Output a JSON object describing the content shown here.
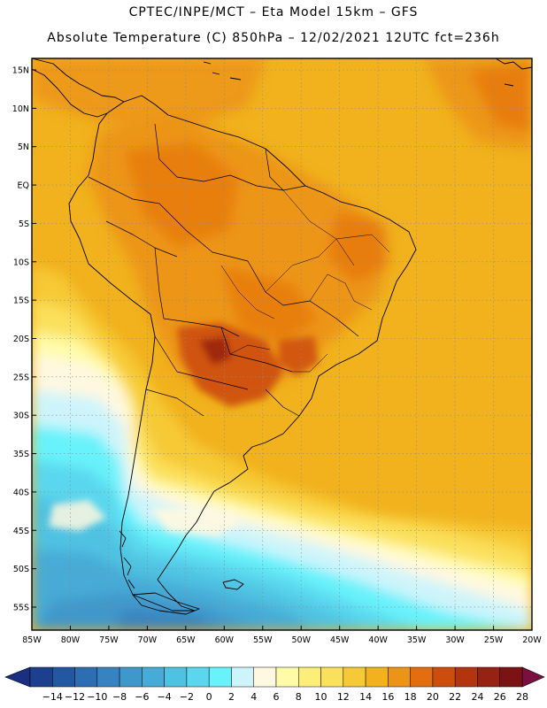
{
  "header": {
    "line1": "CPTEC/INPE/MCT –  Eta Model 15km – GFS",
    "line2": "Absolute Temperature (C) 850hPa – 12/02/2021 12UTC fct=236h"
  },
  "map": {
    "lat_labels": [
      "15N",
      "10N",
      "5N",
      "EQ",
      "5S",
      "10S",
      "15S",
      "20S",
      "25S",
      "30S",
      "35S",
      "40S",
      "45S",
      "50S",
      "55S"
    ],
    "lon_labels": [
      "85W",
      "80W",
      "75W",
      "70W",
      "65W",
      "60W",
      "55W",
      "50W",
      "45W",
      "40W",
      "35W",
      "30W",
      "25W",
      "20W"
    ],
    "lat_range": [
      -58,
      16.5
    ],
    "lon_range": [
      -85,
      -20
    ]
  },
  "colorbar": {
    "labels": [
      "-14",
      "-12",
      "-10",
      "-8",
      "-6",
      "-4",
      "-2",
      "0",
      "2",
      "4",
      "6",
      "8",
      "10",
      "12",
      "14",
      "16",
      "18",
      "20",
      "22",
      "24",
      "26",
      "28"
    ],
    "colors": [
      "#1c3f8e",
      "#2357a0",
      "#2f6db3",
      "#3982c0",
      "#3f97cb",
      "#46abd6",
      "#4fc2e2",
      "#5ad7ee",
      "#68f2fb",
      "#cdf4fb",
      "#fff8e0",
      "#fffba8",
      "#fdee7a",
      "#fbe05c",
      "#f6c936",
      "#f1b21e",
      "#ec9417",
      "#e36d0f",
      "#cc4d0c",
      "#b23510",
      "#962213",
      "#7a1414"
    ],
    "left_arrow": "#1a2e82",
    "right_arrow": "#7a1040"
  }
}
